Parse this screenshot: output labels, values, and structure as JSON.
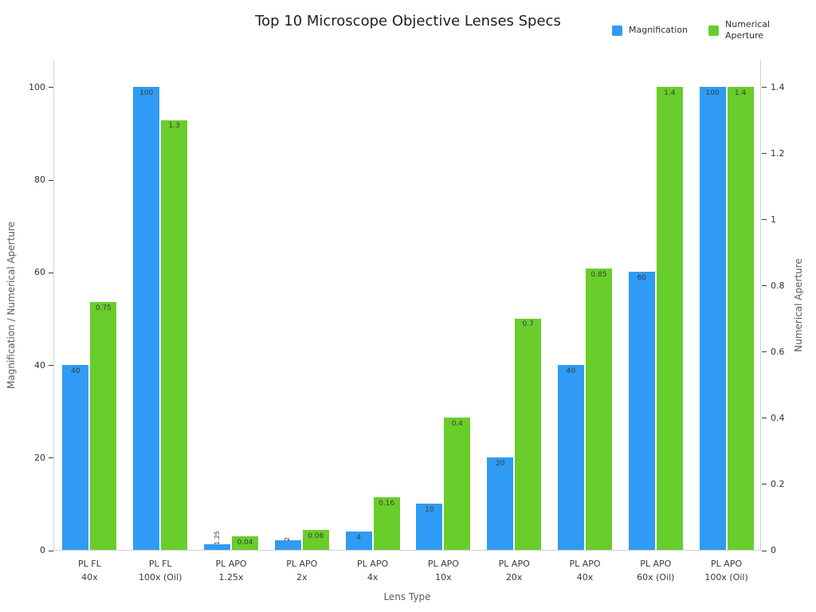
{
  "chart_data": {
    "type": "bar",
    "title": "Top 10 Microscope Objective Lenses Specs",
    "xlabel": "Lens Type",
    "ylabel_left": "Magnification / Numerical Aperture",
    "ylabel_right": "Numerical Aperture",
    "legend_position": "top-right",
    "grid": false,
    "categories": [
      "PL FL\n40x",
      "PL FL\n100x (Oil)",
      "PL APO\n1.25x",
      "PL APO\n2x",
      "PL APO\n4x",
      "PL APO\n10x",
      "PL APO\n20x",
      "PL APO\n40x",
      "PL APO\n60x (Oil)",
      "PL APO\n100x (Oil)"
    ],
    "series": [
      {
        "name": "Magnification",
        "axis": "left",
        "color": "#2F9BF4",
        "values": [
          40,
          100,
          1.25,
          2,
          4,
          10,
          20,
          40,
          60,
          100
        ],
        "labels": [
          "40",
          "100",
          "1.25",
          "2",
          "4",
          "10",
          "20",
          "40",
          "60",
          "100"
        ]
      },
      {
        "name": "Numerical Aperture",
        "axis": "right",
        "color": "#69CD2B",
        "values": [
          0.75,
          1.3,
          0.04,
          0.06,
          0.16,
          0.4,
          0.7,
          0.85,
          1.4,
          1.4
        ],
        "labels": [
          "0.75",
          "1.3",
          "0.04",
          "0.06",
          "0.16",
          "0.4",
          "0.7",
          "0.85",
          "1.4",
          "1.4"
        ]
      }
    ],
    "left_axis": {
      "ticks": [
        0,
        20,
        40,
        60,
        80,
        100
      ],
      "tick_labels": [
        "0",
        "20",
        "40",
        "60",
        "80",
        "100"
      ],
      "range": [
        0,
        106
      ],
      "max": 106
    },
    "right_axis": {
      "ticks": [
        0,
        0.2,
        0.4,
        0.6,
        0.8,
        1.0,
        1.2,
        1.4
      ],
      "tick_labels": [
        "0",
        "0.2",
        "0.4",
        "0.6",
        "0.8",
        "1",
        "1.2",
        "1.4"
      ],
      "range": [
        0,
        1.4843
      ],
      "max": 1.4843
    }
  }
}
